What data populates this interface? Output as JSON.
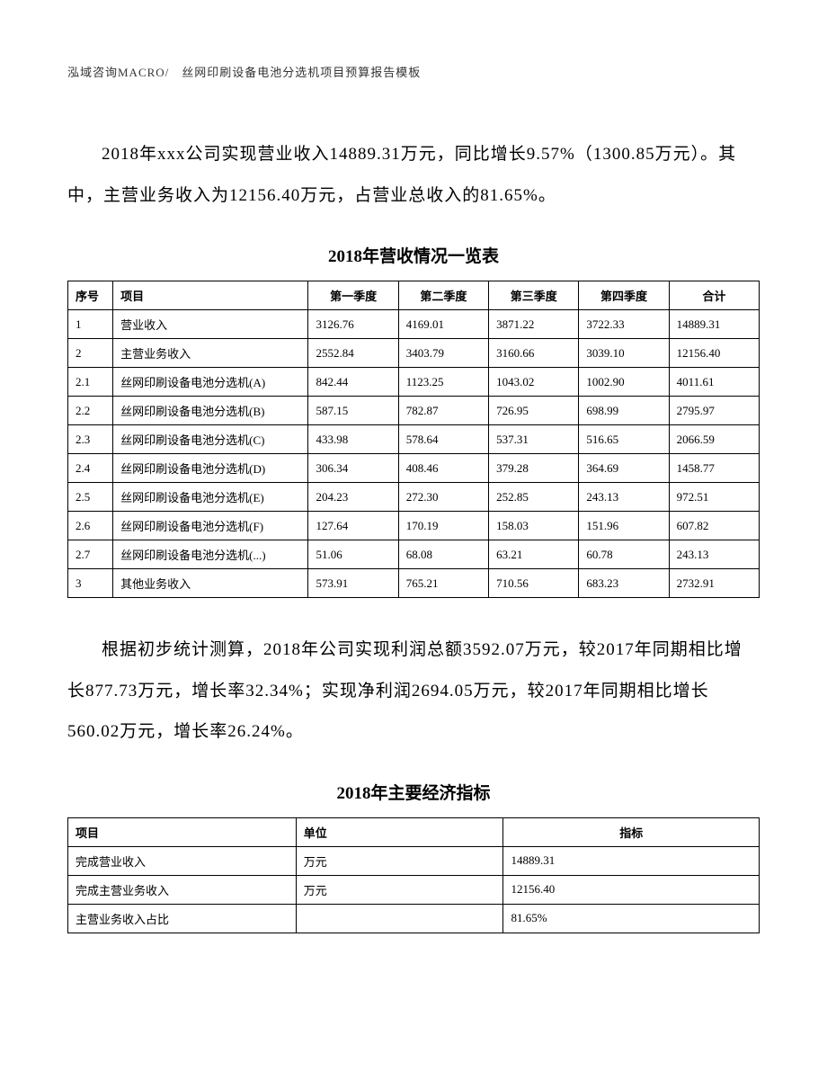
{
  "header": "泓域咨询MACRO/　丝网印刷设备电池分选机项目预算报告模板",
  "paragraph1": "2018年xxx公司实现营业收入14889.31万元，同比增长9.57%（1300.85万元）。其中，主营业务收入为12156.40万元，占营业总收入的81.65%。",
  "table1_title": "2018年营收情况一览表",
  "table1": {
    "columns": [
      "序号",
      "项目",
      "第一季度",
      "第二季度",
      "第三季度",
      "第四季度",
      "合计"
    ],
    "rows": [
      [
        "1",
        "营业收入",
        "3126.76",
        "4169.01",
        "3871.22",
        "3722.33",
        "14889.31"
      ],
      [
        "2",
        "主营业务收入",
        "2552.84",
        "3403.79",
        "3160.66",
        "3039.10",
        "12156.40"
      ],
      [
        "2.1",
        "丝网印刷设备电池分选机(A)",
        "842.44",
        "1123.25",
        "1043.02",
        "1002.90",
        "4011.61"
      ],
      [
        "2.2",
        "丝网印刷设备电池分选机(B)",
        "587.15",
        "782.87",
        "726.95",
        "698.99",
        "2795.97"
      ],
      [
        "2.3",
        "丝网印刷设备电池分选机(C)",
        "433.98",
        "578.64",
        "537.31",
        "516.65",
        "2066.59"
      ],
      [
        "2.4",
        "丝网印刷设备电池分选机(D)",
        "306.34",
        "408.46",
        "379.28",
        "364.69",
        "1458.77"
      ],
      [
        "2.5",
        "丝网印刷设备电池分选机(E)",
        "204.23",
        "272.30",
        "252.85",
        "243.13",
        "972.51"
      ],
      [
        "2.6",
        "丝网印刷设备电池分选机(F)",
        "127.64",
        "170.19",
        "158.03",
        "151.96",
        "607.82"
      ],
      [
        "2.7",
        "丝网印刷设备电池分选机(...)",
        "51.06",
        "68.08",
        "63.21",
        "60.78",
        "243.13"
      ],
      [
        "3",
        "其他业务收入",
        "573.91",
        "765.21",
        "710.56",
        "683.23",
        "2732.91"
      ]
    ]
  },
  "paragraph2": "根据初步统计测算，2018年公司实现利润总额3592.07万元，较2017年同期相比增长877.73万元，增长率32.34%；实现净利润2694.05万元，较2017年同期相比增长560.02万元，增长率26.24%。",
  "table2_title": "2018年主要经济指标",
  "table2": {
    "columns": [
      "项目",
      "单位",
      "指标"
    ],
    "rows": [
      [
        "完成营业收入",
        "万元",
        "14889.31"
      ],
      [
        "完成主营业务收入",
        "万元",
        "12156.40"
      ],
      [
        "主营业务收入占比",
        "",
        "81.65%"
      ]
    ]
  }
}
